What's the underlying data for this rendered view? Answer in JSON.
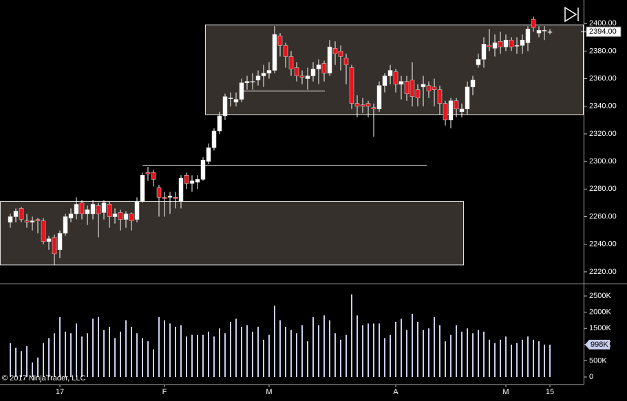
{
  "chart_data": {
    "type": "candlestick",
    "categories": [
      null,
      null,
      null,
      null,
      null,
      null,
      null,
      null,
      null,
      "17",
      null,
      null,
      null,
      null,
      null,
      null,
      null,
      null,
      null,
      null,
      null,
      null,
      null,
      null,
      null,
      null,
      null,
      null,
      "F",
      null,
      null,
      null,
      null,
      null,
      null,
      null,
      null,
      null,
      null,
      null,
      null,
      null,
      null,
      null,
      null,
      null,
      null,
      "M",
      null,
      null,
      null,
      null,
      null,
      null,
      null,
      null,
      null,
      null,
      null,
      null,
      null,
      null,
      null,
      null,
      null,
      null,
      null,
      null,
      null,
      null,
      "A",
      null,
      null,
      null,
      null,
      null,
      null,
      null,
      null,
      null,
      null,
      null,
      null,
      null,
      null,
      null,
      null,
      null,
      null,
      null,
      "M",
      null,
      null,
      null,
      null,
      null,
      null,
      null,
      "15"
    ],
    "open": [
      2256,
      2260,
      2266,
      2257,
      2256,
      2258,
      2257,
      2242,
      2245,
      2236,
      2248,
      2259,
      2262,
      2270,
      2262,
      2262,
      2268,
      2263,
      2269,
      2260,
      2263,
      2258,
      2262,
      2258,
      2271,
      2292,
      2292,
      2281,
      2274,
      2274,
      2274,
      2271,
      2290,
      2284,
      2285,
      2287,
      2300,
      2310,
      2322,
      2333,
      2346,
      2343,
      2345,
      2357,
      2358,
      2359,
      2362,
      2364,
      2366,
      2391,
      2384,
      2376,
      2368,
      2362,
      2360,
      2362,
      2367,
      2371,
      2364,
      2382,
      2380,
      2375,
      2368,
      2342,
      2341,
      2342,
      2339,
      2338,
      2355,
      2362,
      2365,
      2356,
      2358,
      2359,
      2352,
      2354,
      2355,
      2354,
      2352,
      2342,
      2330,
      2344,
      2336,
      2338,
      2354,
      2370,
      2374,
      2384,
      2382,
      2387,
      2383,
      2388,
      2384,
      2384,
      2386,
      2403,
      2393,
      2395,
      2394
    ],
    "high": [
      2262,
      2266,
      2267,
      2262,
      2260,
      2259,
      2259,
      2246,
      2247,
      2250,
      2262,
      2266,
      2274,
      2272,
      2268,
      2272,
      2270,
      2272,
      2271,
      2266,
      2265,
      2264,
      2263,
      2274,
      2292,
      2296,
      2294,
      2283,
      2278,
      2278,
      2278,
      2290,
      2292,
      2290,
      2290,
      2303,
      2313,
      2324,
      2336,
      2349,
      2350,
      2350,
      2360,
      2362,
      2364,
      2366,
      2370,
      2372,
      2398,
      2393,
      2386,
      2380,
      2372,
      2366,
      2368,
      2372,
      2374,
      2373,
      2388,
      2387,
      2384,
      2378,
      2370,
      2348,
      2346,
      2344,
      2342,
      2358,
      2364,
      2370,
      2367,
      2362,
      2362,
      2372,
      2356,
      2362,
      2358,
      2360,
      2355,
      2344,
      2346,
      2346,
      2342,
      2358,
      2362,
      2378,
      2390,
      2396,
      2392,
      2394,
      2392,
      2390,
      2390,
      2392,
      2398,
      2405,
      2398,
      2398,
      2396
    ],
    "low": [
      2252,
      2256,
      2256,
      2252,
      2250,
      2248,
      2240,
      2236,
      2225,
      2230,
      2246,
      2256,
      2258,
      2258,
      2254,
      2258,
      2245,
      2258,
      2252,
      2255,
      2250,
      2252,
      2250,
      2256,
      2270,
      2286,
      2282,
      2260,
      2260,
      2262,
      2266,
      2266,
      2280,
      2278,
      2280,
      2286,
      2298,
      2308,
      2320,
      2330,
      2340,
      2340,
      2343,
      2352,
      2352,
      2355,
      2354,
      2360,
      2364,
      2376,
      2368,
      2362,
      2358,
      2356,
      2352,
      2358,
      2356,
      2358,
      2362,
      2370,
      2366,
      2356,
      2338,
      2332,
      2335,
      2332,
      2318,
      2336,
      2350,
      2356,
      2350,
      2345,
      2344,
      2340,
      2340,
      2340,
      2346,
      2340,
      2334,
      2326,
      2324,
      2332,
      2332,
      2334,
      2348,
      2368,
      2368,
      2380,
      2376,
      2378,
      2380,
      2380,
      2378,
      2378,
      2380,
      2394,
      2390,
      2388,
      2392
    ],
    "close": [
      2260,
      2264,
      2258,
      2256,
      2257,
      2257,
      2242,
      2244,
      2233,
      2248,
      2260,
      2262,
      2269,
      2262,
      2265,
      2269,
      2262,
      2270,
      2260,
      2262,
      2258,
      2262,
      2257,
      2271,
      2290,
      2291,
      2287,
      2274,
      2273,
      2275,
      2273,
      2288,
      2284,
      2286,
      2287,
      2301,
      2310,
      2322,
      2333,
      2347,
      2346,
      2345,
      2357,
      2358,
      2358,
      2362,
      2364,
      2366,
      2392,
      2384,
      2376,
      2367,
      2362,
      2361,
      2362,
      2367,
      2370,
      2364,
      2383,
      2378,
      2376,
      2370,
      2342,
      2340,
      2340,
      2340,
      2338,
      2355,
      2362,
      2366,
      2356,
      2358,
      2349,
      2347,
      2346,
      2356,
      2351,
      2352,
      2342,
      2330,
      2344,
      2338,
      2338,
      2354,
      2359,
      2374,
      2385,
      2383,
      2386,
      2383,
      2388,
      2383,
      2384,
      2388,
      2396,
      2397,
      2395,
      2395,
      2394
    ],
    "volume": [
      1050000,
      900000,
      800000,
      950000,
      450000,
      600000,
      1050000,
      1200000,
      1350000,
      1850000,
      1400000,
      1350000,
      1650000,
      1250000,
      1350000,
      1800000,
      1850000,
      1450000,
      1550000,
      1200000,
      1400000,
      1750000,
      1550000,
      1350000,
      1200000,
      1100000,
      850000,
      1850000,
      1750000,
      1650000,
      1550000,
      1600000,
      1250000,
      1300000,
      1300000,
      1300000,
      1400000,
      1250000,
      1500000,
      1350000,
      1700000,
      1800000,
      1550000,
      1600000,
      1400000,
      1550000,
      1150000,
      1300000,
      2200000,
      1750000,
      1550000,
      1450000,
      1350000,
      1600000,
      1100000,
      1850000,
      1600000,
      1900000,
      1750000,
      1350000,
      1150000,
      1300000,
      2550000,
      1900000,
      1600000,
      1650000,
      1650000,
      1650000,
      1200000,
      1300000,
      1700000,
      1800000,
      1450000,
      1950000,
      1700000,
      1450000,
      1500000,
      1850000,
      1600000,
      1100000,
      1300000,
      1600000,
      1400000,
      1500000,
      1350000,
      1450000,
      1400000,
      1150000,
      1050000,
      1150000,
      1250000,
      1000000,
      1050000,
      1150000,
      1250000,
      1150000,
      1100000,
      1000000,
      998000
    ],
    "last_volume_label": "998K",
    "ylim": [
      2212,
      2417
    ],
    "yticks": [
      {
        "value": 2220,
        "label": "2220.00"
      },
      {
        "value": 2240,
        "label": "2240.00"
      },
      {
        "value": 2260,
        "label": "2260.00"
      },
      {
        "value": 2280,
        "label": "2280.00"
      },
      {
        "value": 2300,
        "label": "2300.00"
      },
      {
        "value": 2320,
        "label": "2320.00"
      },
      {
        "value": 2340,
        "label": "2340.00"
      },
      {
        "value": 2360,
        "label": "2360.00"
      },
      {
        "value": 2380,
        "label": "2380.00"
      },
      {
        "value": 2400,
        "label": "2400.00"
      }
    ],
    "y2lim": [
      -233000,
      2840000
    ],
    "y2ticks": [
      0,
      {
        "value": 500000,
        "label": "500K"
      },
      {
        "value": 1000000,
        "label": "1000K"
      },
      {
        "value": 1500000,
        "label": "1500K"
      },
      {
        "value": 2000000,
        "label": "2000K"
      },
      {
        "value": 2500000,
        "label": "2500K"
      }
    ],
    "last_price": {
      "value": 2394,
      "label": "2394.00"
    },
    "zones": [
      {
        "top": 2271,
        "bottom": 2225
      },
      {
        "top": 2399,
        "bottom": 2334
      }
    ],
    "lines": [
      2351,
      2297
    ],
    "up_color": "#ffffff",
    "down_color": "#e8141c",
    "volume_color": "#c8cfee",
    "zone_color": "#35302b",
    "copyright": "© 2017 NinjaTrader, LLC"
  }
}
